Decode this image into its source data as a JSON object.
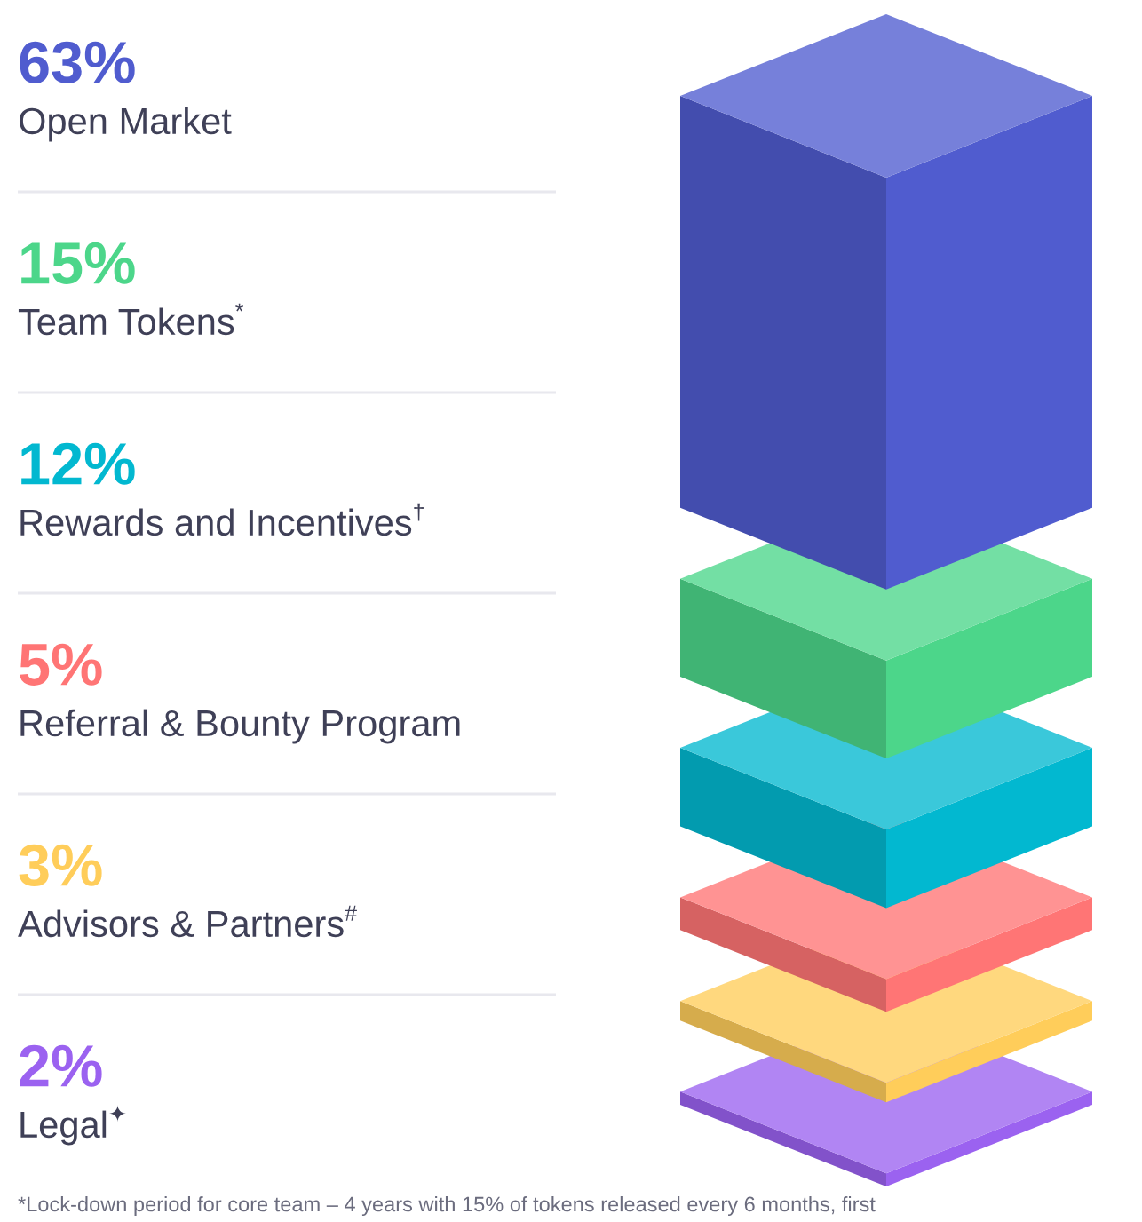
{
  "chart_data": {
    "type": "other",
    "categories": [
      "Open Market",
      "Team Tokens$^{*}$",
      "Rewards and Incentives$^{†}$",
      "Referral & Bounty Program",
      "Advisors & Partners$^{#}$",
      "Legal$^{✦}$"
    ],
    "values": [
      63,
      15,
      12,
      5,
      3,
      2
    ],
    "value_labels": [
      "63%",
      "15%",
      "12%",
      "5%",
      "3%",
      "2%"
    ],
    "colors": [
      "#505ccf",
      "#4cd68a",
      "#02b8d0",
      "#ff7575",
      "#ffcd5a",
      "#9b62f0"
    ],
    "annotations": [
      "*Lock-down period for core team – 4 years with 15% of tokens released every 6 months, first"
    ]
  }
}
